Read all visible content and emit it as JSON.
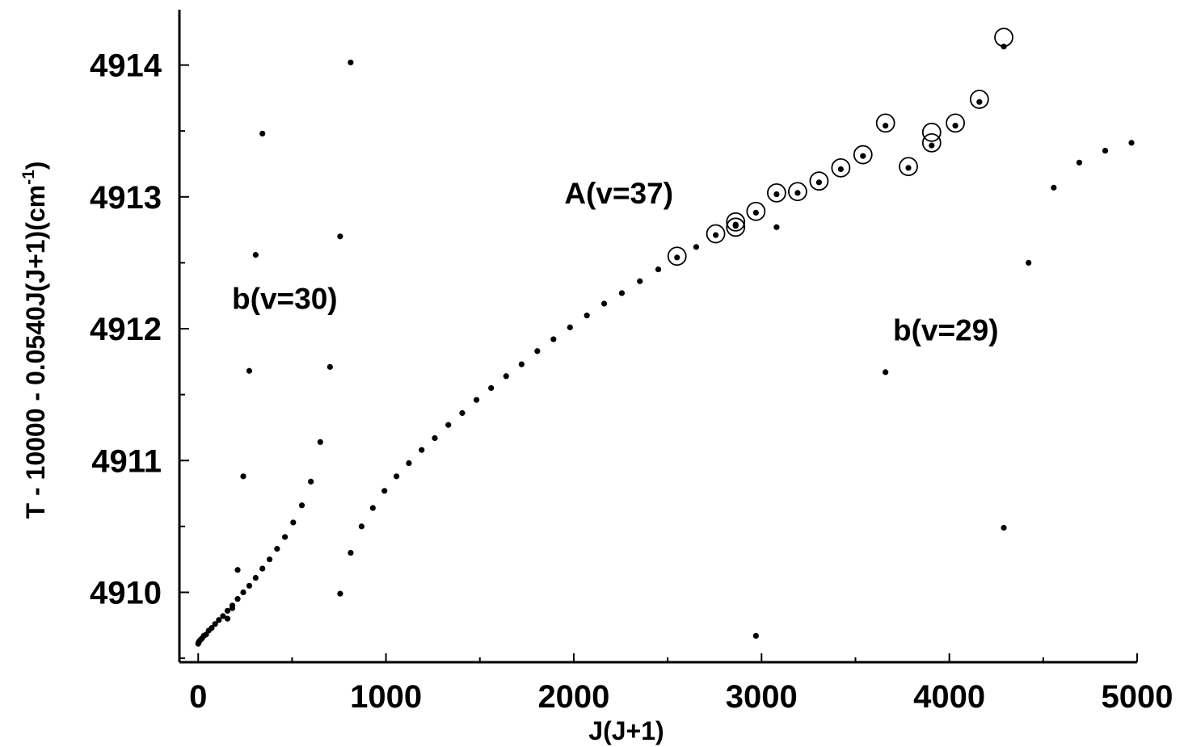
{
  "chart_data": {
    "type": "scatter",
    "title": "",
    "xlabel": "J(J+1)",
    "ylabel": "T - 10000 - 0.0540J(J+1)(cm",
    "ylabel_sup": "-1",
    "ylabel_close": ")",
    "xlim": [
      -100,
      5000
    ],
    "ylim": [
      4909.47,
      4914.42
    ],
    "xticks": [
      0,
      1000,
      2000,
      3000,
      4000,
      5000
    ],
    "xtick_labels": [
      "0",
      "1000",
      "2000",
      "3000",
      "4000",
      "5000"
    ],
    "yticks": [
      4910,
      4911,
      4912,
      4913,
      4914
    ],
    "ytick_labels": [
      "4910",
      "4911",
      "4912",
      "4913",
      "4914"
    ],
    "grid": false,
    "annotations": [
      {
        "text": "A(v=37)",
        "x": 1950,
        "y": 4912.95
      },
      {
        "text": "b(v=30)",
        "x": 180,
        "y": 4912.15
      },
      {
        "text": "b(v=29)",
        "x": 3700,
        "y": 4911.91
      }
    ],
    "series": [
      {
        "marker": "dot",
        "points": [
          [
            0,
            4909.61
          ],
          [
            2,
            4909.62
          ],
          [
            6,
            4909.63
          ],
          [
            12,
            4909.64
          ],
          [
            20,
            4909.65
          ],
          [
            30,
            4909.67
          ],
          [
            42,
            4909.68
          ],
          [
            56,
            4909.71
          ],
          [
            72,
            4909.73
          ],
          [
            90,
            4909.76
          ],
          [
            110,
            4909.79
          ],
          [
            132,
            4909.82
          ],
          [
            156,
            4909.86
          ],
          [
            182,
            4909.9
          ],
          [
            210,
            4909.95
          ],
          [
            240,
            4910.0
          ],
          [
            272,
            4910.05
          ],
          [
            306,
            4910.11
          ],
          [
            342,
            4910.18
          ],
          [
            380,
            4910.25
          ],
          [
            420,
            4910.33
          ],
          [
            462,
            4910.42
          ],
          [
            506,
            4910.53
          ],
          [
            552,
            4910.66
          ],
          [
            600,
            4910.84
          ],
          [
            650,
            4911.14
          ],
          [
            702,
            4911.71
          ],
          [
            756,
            4912.7
          ],
          [
            812,
            4914.02
          ],
          [
            156,
            4909.8
          ],
          [
            182,
            4909.88
          ],
          [
            210,
            4910.17
          ],
          [
            240,
            4910.88
          ],
          [
            272,
            4911.68
          ],
          [
            306,
            4912.56
          ],
          [
            342,
            4913.48
          ],
          [
            756,
            4909.99
          ],
          [
            812,
            4910.3
          ],
          [
            870,
            4910.5
          ],
          [
            930,
            4910.64
          ],
          [
            992,
            4910.77
          ],
          [
            1056,
            4910.88
          ],
          [
            1122,
            4910.98
          ],
          [
            1190,
            4911.08
          ],
          [
            1260,
            4911.17
          ],
          [
            1332,
            4911.27
          ],
          [
            1406,
            4911.36
          ],
          [
            1482,
            4911.46
          ],
          [
            1560,
            4911.55
          ],
          [
            1640,
            4911.64
          ],
          [
            1722,
            4911.73
          ],
          [
            1806,
            4911.83
          ],
          [
            1892,
            4911.92
          ],
          [
            1980,
            4912.01
          ],
          [
            2070,
            4912.1
          ],
          [
            2162,
            4912.19
          ],
          [
            2256,
            4912.27
          ],
          [
            2352,
            4912.36
          ],
          [
            2450,
            4912.45
          ],
          [
            2550,
            4912.54
          ],
          [
            2652,
            4912.62
          ],
          [
            2756,
            4912.71
          ],
          [
            2862,
            4912.78
          ],
          [
            2970,
            4912.88
          ],
          [
            3080,
            4913.02
          ],
          [
            3192,
            4913.03
          ],
          [
            3306,
            4913.11
          ],
          [
            3422,
            4913.21
          ],
          [
            3540,
            4913.31
          ],
          [
            3660,
            4913.54
          ],
          [
            3782,
            4913.22
          ],
          [
            3906,
            4913.39
          ],
          [
            4032,
            4913.54
          ],
          [
            4160,
            4913.72
          ],
          [
            4290,
            4914.14
          ],
          [
            2862,
            4912.79
          ],
          [
            3080,
            4912.77
          ],
          [
            3660,
            4911.67
          ],
          [
            4290,
            4910.49
          ],
          [
            2970,
            4909.67
          ],
          [
            4422,
            4912.5
          ],
          [
            4556,
            4913.07
          ],
          [
            4692,
            4913.26
          ],
          [
            4830,
            4913.35
          ],
          [
            4970,
            4913.41
          ]
        ]
      },
      {
        "marker": "open-circle",
        "points": [
          [
            2550,
            4912.55
          ],
          [
            2756,
            4912.72
          ],
          [
            2862,
            4912.77
          ],
          [
            2862,
            4912.81
          ],
          [
            2970,
            4912.89
          ],
          [
            3080,
            4913.03
          ],
          [
            3192,
            4913.04
          ],
          [
            3306,
            4913.12
          ],
          [
            3422,
            4913.22
          ],
          [
            3540,
            4913.32
          ],
          [
            3660,
            4913.56
          ],
          [
            3782,
            4913.23
          ],
          [
            3906,
            4913.41
          ],
          [
            3906,
            4913.49
          ],
          [
            4032,
            4913.56
          ],
          [
            4160,
            4913.74
          ],
          [
            4290,
            4914.21
          ]
        ]
      }
    ]
  }
}
